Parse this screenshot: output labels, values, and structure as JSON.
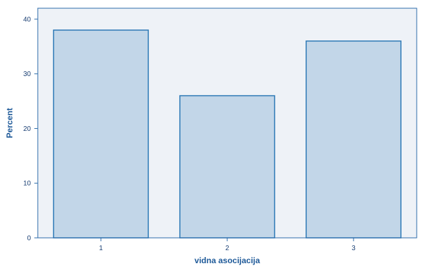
{
  "chart_data": {
    "type": "bar",
    "categories": [
      "1",
      "2",
      "3"
    ],
    "values": [
      38,
      26,
      36
    ],
    "title": "",
    "xlabel": "vidna asocijacija",
    "ylabel": "Percent",
    "ylim": [
      0,
      42
    ],
    "yticks": [
      0,
      10,
      20,
      30,
      40
    ],
    "grid": false,
    "legend": "none"
  },
  "colors": {
    "plot_background": "#eef2f7",
    "bar_fill": "#c2d6e8",
    "bar_stroke": "#2b78b5",
    "axis": "#2b6aa9",
    "tick_text": "#1a3f73",
    "title_text": "#1f5a99"
  }
}
